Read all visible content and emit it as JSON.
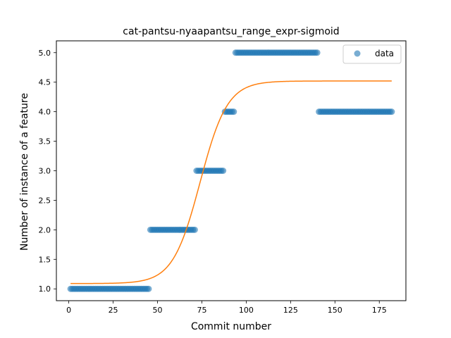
{
  "chart_data": {
    "type": "scatter",
    "title": "cat-pantsu-nyaapantsu_range_expr-sigmoid",
    "xlabel": "Commit number",
    "ylabel": "Number of instance of a feature",
    "xlim": [
      -7,
      190
    ],
    "ylim": [
      0.8,
      5.2
    ],
    "xticks": [
      0,
      25,
      50,
      75,
      100,
      125,
      150,
      175
    ],
    "yticks": [
      1.0,
      1.5,
      2.0,
      2.5,
      3.0,
      3.5,
      4.0,
      4.5,
      5.0
    ],
    "legend": {
      "position": "top-right",
      "entries": [
        "data"
      ]
    },
    "grid": false,
    "series": [
      {
        "name": "data",
        "kind": "scatter",
        "color": "#1f77b4",
        "segments": [
          {
            "x_start": 1,
            "x_end": 45,
            "y": 1.0
          },
          {
            "x_start": 46,
            "x_end": 71,
            "y": 2.0
          },
          {
            "x_start": 72,
            "x_end": 87,
            "y": 3.0
          },
          {
            "x_start": 88,
            "x_end": 93,
            "y": 4.0
          },
          {
            "x_start": 94,
            "x_end": 140,
            "y": 5.0
          },
          {
            "x_start": 141,
            "x_end": 182,
            "y": 4.0
          }
        ]
      },
      {
        "kind": "line",
        "color": "#ff7f0e",
        "model": "sigmoid",
        "params": {
          "L": 3.43,
          "k": 0.13,
          "x0": 74,
          "b": 1.09
        },
        "x_range": [
          1,
          182
        ]
      }
    ]
  }
}
